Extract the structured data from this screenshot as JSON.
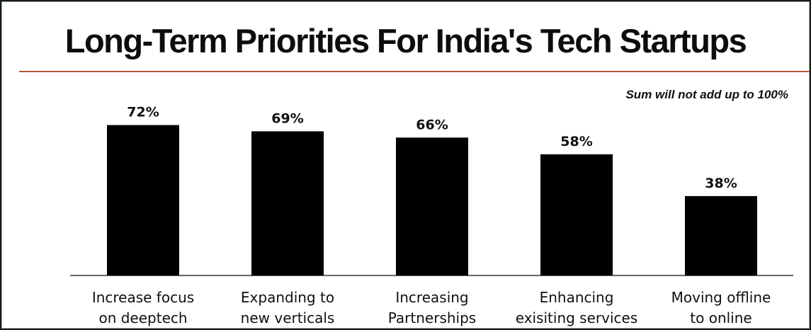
{
  "chart_data": {
    "type": "bar",
    "title": "Long-Term Priorities For India's Tech Startups",
    "note": "Sum will not add up to 100%",
    "categories": [
      [
        "Increase focus",
        "on deeptech"
      ],
      [
        "Expanding to",
        "new verticals"
      ],
      [
        "Increasing",
        "Partnerships"
      ],
      [
        "Enhancing",
        "exisiting services"
      ],
      [
        "Moving offline",
        "to online"
      ]
    ],
    "values": [
      72,
      69,
      66,
      58,
      38
    ],
    "value_labels": [
      "72%",
      "69%",
      "66%",
      "58%",
      "38%"
    ],
    "unit": "%",
    "ylim": [
      0,
      100
    ],
    "grid": false,
    "legend": "none",
    "bar_color": "#000000",
    "accent_rule_color": "#b5553a"
  }
}
